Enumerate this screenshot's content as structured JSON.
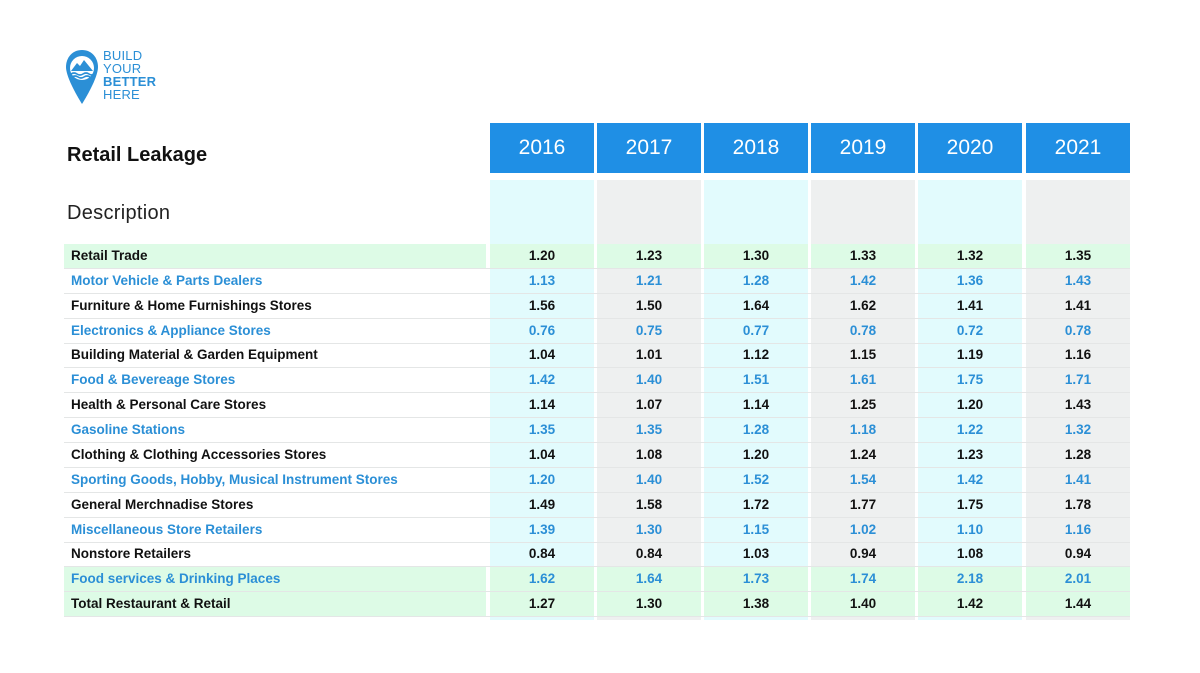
{
  "logo": {
    "lines": [
      "BUILD",
      "YOUR",
      "BETTER",
      "HERE"
    ],
    "icon": "map-pin-mountain-icon",
    "color": "#2b8fd6"
  },
  "title": "Retail Leakage",
  "description_label": "Description",
  "colors": {
    "header": "#1f8fe5",
    "cyan_band": "#e2fbfd",
    "gray_band": "#eef0f0",
    "highlight": "#ddfbe6",
    "blue_text": "#2b8fd6"
  },
  "years": [
    "2016",
    "2017",
    "2018",
    "2019",
    "2020",
    "2021"
  ],
  "rows": [
    {
      "label": "Retail Trade",
      "values": [
        "1.20",
        "1.23",
        "1.30",
        "1.33",
        "1.32",
        "1.35"
      ],
      "style": "black",
      "highlight": true
    },
    {
      "label": "Motor Vehicle & Parts Dealers",
      "values": [
        "1.13",
        "1.21",
        "1.28",
        "1.42",
        "1.36",
        "1.43"
      ],
      "style": "blue",
      "highlight": false
    },
    {
      "label": "Furniture & Home Furnishings Stores",
      "values": [
        "1.56",
        "1.50",
        "1.64",
        "1.62",
        "1.41",
        "1.41"
      ],
      "style": "black",
      "highlight": false
    },
    {
      "label": "Electronics & Appliance Stores",
      "values": [
        "0.76",
        "0.75",
        "0.77",
        "0.78",
        "0.72",
        "0.78"
      ],
      "style": "blue",
      "highlight": false
    },
    {
      "label": "Building Material & Garden Equipment",
      "values": [
        "1.04",
        "1.01",
        "1.12",
        "1.15",
        "1.19",
        "1.16"
      ],
      "style": "black",
      "highlight": false
    },
    {
      "label": "Food & Bevereage Stores",
      "values": [
        "1.42",
        "1.40",
        "1.51",
        "1.61",
        "1.75",
        "1.71"
      ],
      "style": "blue",
      "highlight": false
    },
    {
      "label": "Health & Personal Care Stores",
      "values": [
        "1.14",
        "1.07",
        "1.14",
        "1.25",
        "1.20",
        "1.43"
      ],
      "style": "black",
      "highlight": false
    },
    {
      "label": "Gasoline Stations",
      "values": [
        "1.35",
        "1.35",
        "1.28",
        "1.18",
        "1.22",
        "1.32"
      ],
      "style": "blue",
      "highlight": false
    },
    {
      "label": "Clothing & Clothing Accessories Stores",
      "values": [
        "1.04",
        "1.08",
        "1.20",
        "1.24",
        "1.23",
        "1.28"
      ],
      "style": "black",
      "highlight": false
    },
    {
      "label": "Sporting Goods, Hobby, Musical Instrument Stores",
      "values": [
        "1.20",
        "1.40",
        "1.52",
        "1.54",
        "1.42",
        "1.41"
      ],
      "style": "blue",
      "highlight": false
    },
    {
      "label": "General Merchnadise Stores",
      "values": [
        "1.49",
        "1.58",
        "1.72",
        "1.77",
        "1.75",
        "1.78"
      ],
      "style": "black",
      "highlight": false
    },
    {
      "label": "Miscellaneous Store Retailers",
      "values": [
        "1.39",
        "1.30",
        "1.15",
        "1.02",
        "1.10",
        "1.16"
      ],
      "style": "blue",
      "highlight": false
    },
    {
      "label": "Nonstore Retailers",
      "values": [
        "0.84",
        "0.84",
        "1.03",
        "0.94",
        "1.08",
        "0.94"
      ],
      "style": "black",
      "highlight": false
    },
    {
      "label": "Food services & Drinking Places",
      "values": [
        "1.62",
        "1.64",
        "1.73",
        "1.74",
        "2.18",
        "2.01"
      ],
      "style": "blue",
      "highlight": true
    },
    {
      "label": "Total Restaurant & Retail",
      "values": [
        "1.27",
        "1.30",
        "1.38",
        "1.40",
        "1.42",
        "1.44"
      ],
      "style": "black",
      "highlight": true
    }
  ]
}
